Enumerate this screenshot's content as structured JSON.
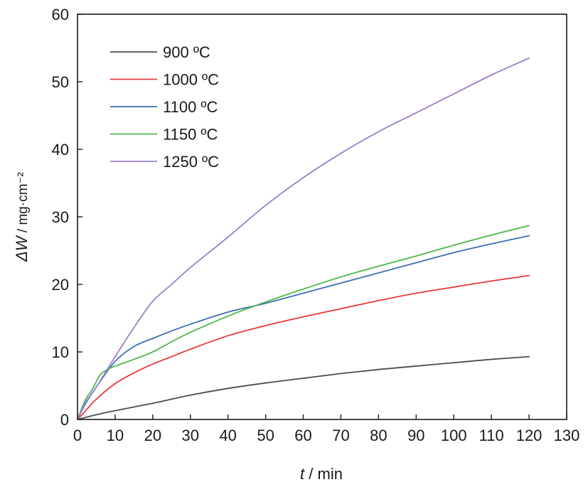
{
  "chart_data": {
    "type": "line",
    "xlabel_var": "t",
    "xlabel_unit": " / min",
    "ylabel_var": "ΔW",
    "ylabel_unit": " / mg·cm⁻²",
    "xlim": [
      0,
      130
    ],
    "ylim": [
      0,
      60
    ],
    "xticks": [
      0,
      10,
      20,
      30,
      40,
      50,
      60,
      70,
      80,
      90,
      100,
      110,
      120,
      130
    ],
    "yticks": [
      0,
      10,
      20,
      30,
      40,
      50,
      60
    ],
    "grid": false,
    "legend_position": "top-left",
    "series": [
      {
        "name": "900 ºC",
        "color": "#4d4d4d",
        "x": [
          0,
          5,
          10,
          20,
          30,
          40,
          50,
          60,
          70,
          80,
          90,
          100,
          110,
          120
        ],
        "y": [
          0,
          0.7,
          1.3,
          2.4,
          3.6,
          4.6,
          5.4,
          6.1,
          6.8,
          7.4,
          7.9,
          8.4,
          8.9,
          9.3
        ]
      },
      {
        "name": "1000 ºC",
        "color": "#e8393a",
        "x": [
          0,
          2,
          5,
          10,
          15,
          20,
          25,
          30,
          40,
          50,
          60,
          70,
          80,
          90,
          100,
          110,
          120
        ],
        "y": [
          0,
          1.2,
          3.0,
          5.3,
          6.9,
          8.2,
          9.3,
          10.4,
          12.4,
          13.9,
          15.2,
          16.4,
          17.6,
          18.7,
          19.6,
          20.5,
          21.3
        ]
      },
      {
        "name": "1100 ºC",
        "color": "#3d6db5",
        "x": [
          0,
          2,
          5,
          10,
          15,
          20,
          25,
          30,
          40,
          50,
          60,
          70,
          80,
          90,
          100,
          110,
          120
        ],
        "y": [
          0,
          2.2,
          4.8,
          8.6,
          10.8,
          12.0,
          13.1,
          14.1,
          15.9,
          17.2,
          18.7,
          20.2,
          21.7,
          23.2,
          24.7,
          26.0,
          27.2
        ]
      },
      {
        "name": "1150 ºC",
        "color": "#4cb848",
        "x": [
          0,
          2,
          4,
          6,
          8,
          10,
          15,
          20,
          25,
          30,
          40,
          50,
          60,
          70,
          80,
          90,
          100,
          110,
          120
        ],
        "y": [
          0,
          2.8,
          4.5,
          6.6,
          7.4,
          7.9,
          8.9,
          10.0,
          11.5,
          12.9,
          15.3,
          17.4,
          19.3,
          21.1,
          22.7,
          24.2,
          25.8,
          27.3,
          28.7
        ]
      },
      {
        "name": "1250 ºC",
        "color": "#9b7fcc",
        "x": [
          0,
          2,
          5,
          10,
          15,
          20,
          25,
          30,
          40,
          50,
          60,
          70,
          80,
          90,
          100,
          110,
          120
        ],
        "y": [
          0,
          2.4,
          4.8,
          9.3,
          13.6,
          17.5,
          20.0,
          22.5,
          27.0,
          31.7,
          35.8,
          39.4,
          42.6,
          45.4,
          48.2,
          51.0,
          53.5
        ]
      }
    ]
  }
}
